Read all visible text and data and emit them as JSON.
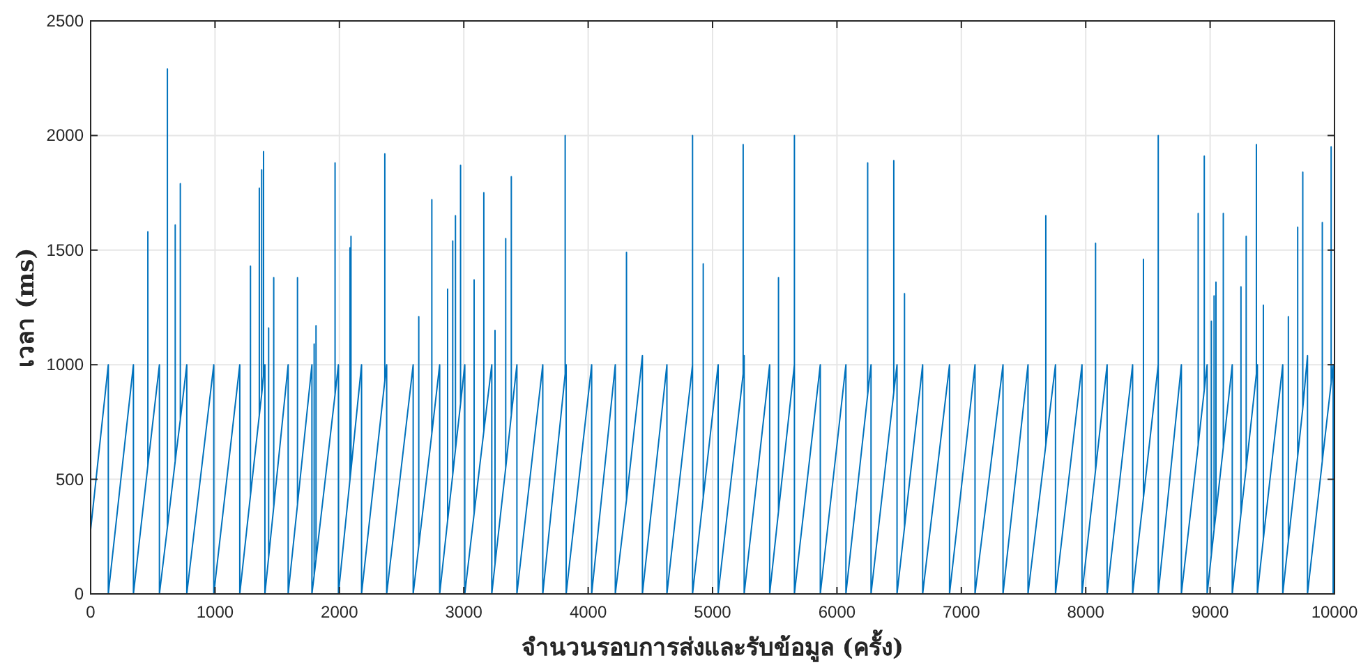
{
  "chart_data": {
    "type": "line",
    "xlabel": "จำนวนรอบการส่งและรับข้อมูล (ครั้ง)",
    "ylabel": "เวลา (ms)",
    "xlim": [
      0,
      10000
    ],
    "ylim": [
      0,
      2500
    ],
    "xticks": [
      0,
      1000,
      2000,
      3000,
      4000,
      5000,
      6000,
      7000,
      8000,
      9000,
      10000
    ],
    "yticks": [
      0,
      500,
      1000,
      1500,
      2000,
      2500
    ],
    "grid": true,
    "series": [
      {
        "color": "#0072bd",
        "x": [
          0,
          142,
          142,
          344,
          344,
          460,
          460,
          460,
          553,
          553,
          617,
          617,
          617,
          680,
          680,
          680,
          721,
          721,
          721,
          773,
          773,
          990,
          990,
          1199,
          1199,
          1285,
          1285,
          1285,
          1356,
          1356,
          1356,
          1375,
          1375,
          1375,
          1390,
          1390,
          1390,
          1401,
          1401,
          1431,
          1431,
          1431,
          1472,
          1472,
          1472,
          1588,
          1588,
          1663,
          1663,
          1663,
          1779,
          1779,
          1797,
          1797,
          1797,
          1812,
          1812,
          1812,
          1965,
          1965,
          1965,
          1992,
          1992,
          2085,
          2085,
          2085,
          2093,
          2093,
          2093,
          2178,
          2178,
          2365,
          2365,
          2365,
          2380,
          2380,
          2593,
          2593,
          2638,
          2638,
          2638,
          2743,
          2743,
          2743,
          2806,
          2806,
          2870,
          2870,
          2870,
          2911,
          2911,
          2911,
          2933,
          2933,
          2933,
          2974,
          2974,
          2974,
          3008,
          3008,
          3083,
          3083,
          3083,
          3161,
          3161,
          3161,
          3225,
          3225,
          3251,
          3251,
          3251,
          3337,
          3337,
          3337,
          3382,
          3382,
          3382,
          3427,
          3427,
          3635,
          3635,
          3815,
          3815,
          3815,
          3823,
          3823,
          4028,
          4028,
          4218,
          4218,
          4308,
          4308,
          4308,
          4436,
          4436,
          4633,
          4633,
          4839,
          4839,
          4839,
          4925,
          4925,
          4925,
          5045,
          5045,
          5246,
          5246,
          5246,
          5254,
          5254,
          5459,
          5459,
          5530,
          5530,
          5530,
          5658,
          5658,
          5658,
          5866,
          5866,
          6072,
          6072,
          6247,
          6247,
          6247,
          6274,
          6274,
          6457,
          6457,
          6457,
          6483,
          6483,
          6543,
          6543,
          6543,
          6689,
          6689,
          6905,
          6905,
          7110,
          7110,
          7335,
          7335,
          7536,
          7536,
          7679,
          7679,
          7679,
          7757,
          7757,
          7970,
          7970,
          8079,
          8079,
          8079,
          8172,
          8172,
          8377,
          8377,
          8464,
          8464,
          8464,
          8583,
          8583,
          8583,
          8769,
          8769,
          8904,
          8904,
          8904,
          8953,
          8953,
          8953,
          8976,
          8976,
          9010,
          9010,
          9010,
          9032,
          9032,
          9032,
          9047,
          9047,
          9047,
          9106,
          9106,
          9106,
          9178,
          9178,
          9248,
          9248,
          9248,
          9290,
          9290,
          9290,
          9372,
          9372,
          9372,
          9380,
          9380,
          9428,
          9428,
          9428,
          9584,
          9584,
          9629,
          9629,
          9629,
          9704,
          9704,
          9704,
          9745,
          9745,
          9745,
          9783,
          9783,
          9902,
          9902,
          9902,
          9973,
          9973,
          9973,
          9989,
          9989,
          10000
        ],
        "values": [
          280,
          1000,
          0,
          1000,
          0,
          560,
          1580,
          560,
          1000,
          0,
          290,
          2290,
          290,
          580,
          1610,
          580,
          760,
          1790,
          760,
          1000,
          0,
          1000,
          0,
          1000,
          0,
          430,
          1430,
          430,
          780,
          1770,
          780,
          870,
          1850,
          870,
          950,
          1930,
          950,
          1000,
          0,
          160,
          1160,
          160,
          380,
          1380,
          380,
          1000,
          0,
          390,
          1380,
          390,
          1000,
          0,
          80,
          1090,
          80,
          150,
          1170,
          150,
          870,
          1880,
          870,
          1000,
          0,
          500,
          1510,
          500,
          540,
          1560,
          540,
          1000,
          0,
          930,
          1920,
          930,
          1000,
          0,
          1000,
          0,
          210,
          1210,
          210,
          700,
          1720,
          700,
          1000,
          0,
          320,
          1330,
          320,
          520,
          1540,
          520,
          630,
          1650,
          630,
          830,
          1870,
          830,
          1000,
          0,
          350,
          1370,
          350,
          710,
          1750,
          710,
          1000,
          0,
          130,
          1150,
          130,
          550,
          1550,
          550,
          780,
          1820,
          780,
          1000,
          0,
          1000,
          0,
          960,
          2000,
          960,
          1000,
          0,
          1000,
          0,
          1000,
          0,
          410,
          1490,
          410,
          1040,
          0,
          1000,
          0,
          1000,
          2000,
          0,
          420,
          1440,
          420,
          1000,
          0,
          960,
          1960,
          960,
          1040,
          0,
          1000,
          0,
          360,
          1380,
          360,
          1000,
          2000,
          0,
          1000,
          0,
          1000,
          0,
          870,
          1880,
          870,
          1000,
          0,
          880,
          1890,
          880,
          1000,
          0,
          290,
          1310,
          290,
          1000,
          0,
          1000,
          0,
          1000,
          0,
          1000,
          0,
          1000,
          0,
          650,
          1650,
          650,
          1000,
          0,
          1000,
          0,
          540,
          1530,
          540,
          1000,
          0,
          1000,
          0,
          420,
          1460,
          420,
          1000,
          2000,
          0,
          1000,
          0,
          650,
          1660,
          650,
          890,
          1910,
          890,
          1000,
          0,
          170,
          1190,
          170,
          280,
          1300,
          280,
          350,
          1360,
          350,
          640,
          1660,
          640,
          1000,
          0,
          350,
          1340,
          350,
          550,
          1560,
          550,
          960,
          1960,
          960,
          1000,
          0,
          240,
          1260,
          240,
          1000,
          0,
          230,
          1210,
          230,
          600,
          1600,
          600,
          810,
          1840,
          810,
          1040,
          0,
          580,
          1620,
          580,
          920,
          1950,
          920,
          1000,
          0,
          60
        ]
      }
    ]
  }
}
